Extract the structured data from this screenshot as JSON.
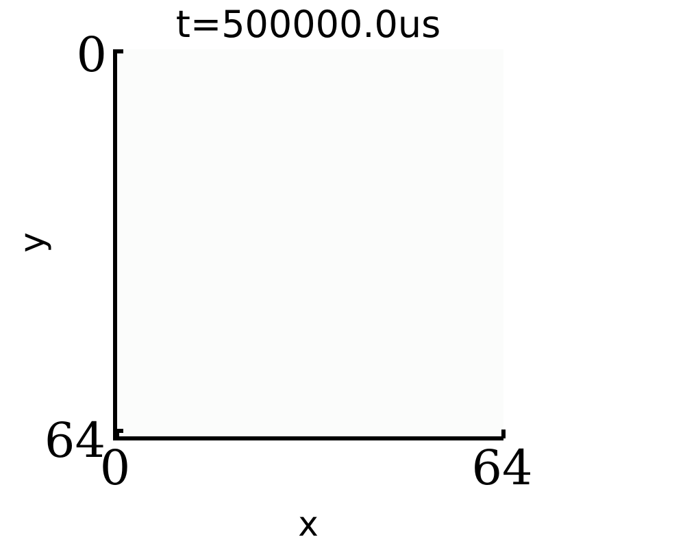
{
  "chart_data": {
    "type": "heatmap",
    "title": "t=500000.0us",
    "xlabel": "x",
    "ylabel": "y",
    "xlim": [
      0,
      64
    ],
    "ylim": [
      64,
      0
    ],
    "x_ticks": [
      "0",
      "64"
    ],
    "y_ticks": [
      "0",
      "64"
    ],
    "grid": false,
    "legend": "none",
    "field_color": "#fbfcfb",
    "axis_color": "#000000"
  }
}
